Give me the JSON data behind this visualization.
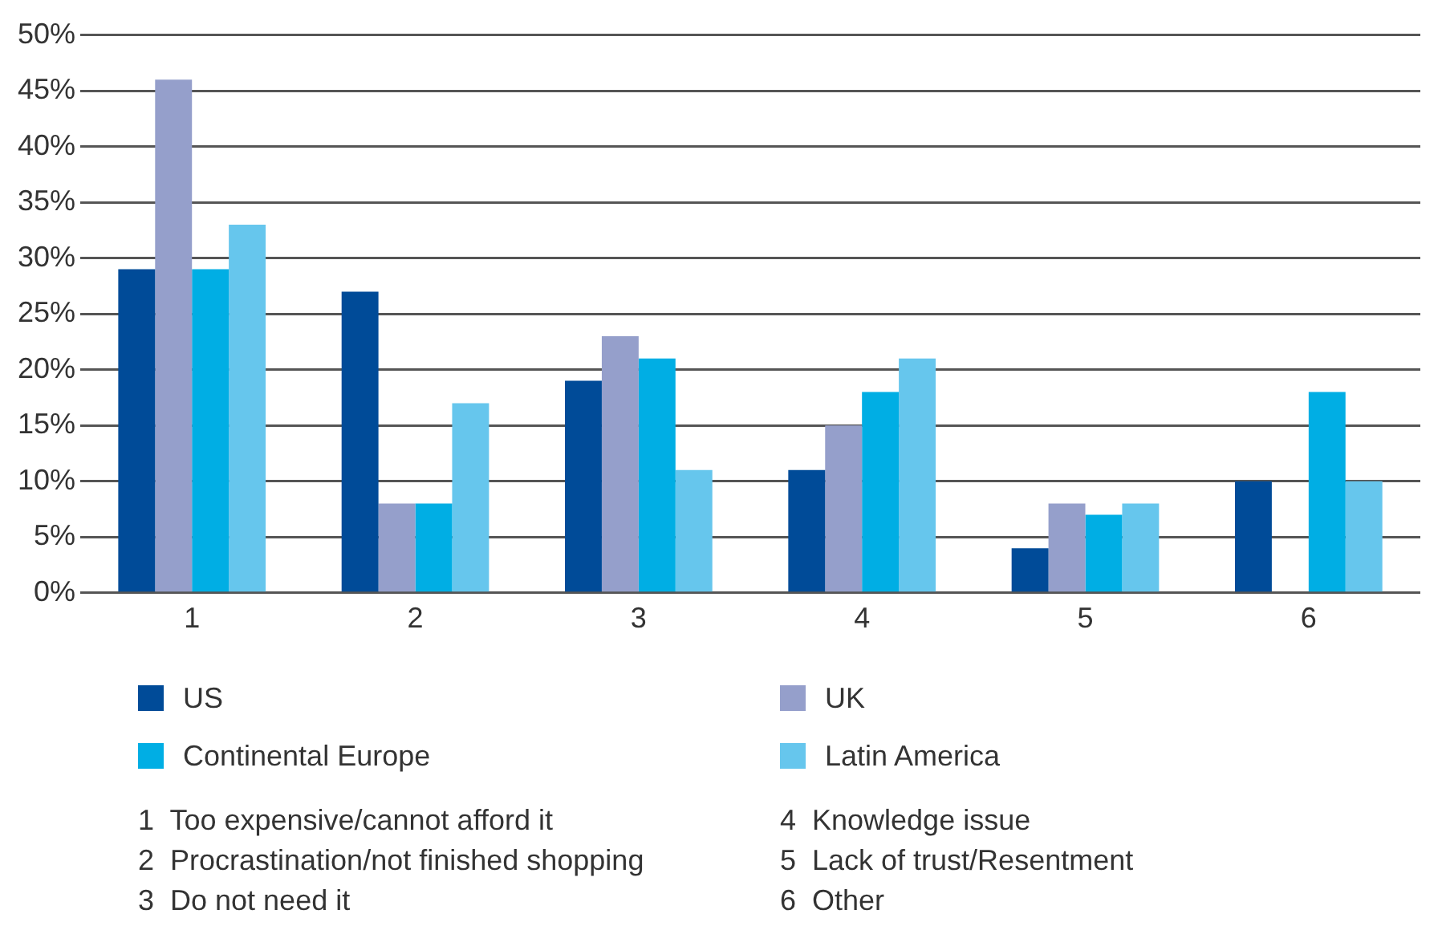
{
  "chart_data": {
    "type": "bar",
    "categories": [
      "1",
      "2",
      "3",
      "4",
      "5",
      "6"
    ],
    "series": [
      {
        "name": "US",
        "color": "#004b98",
        "values": [
          29,
          27,
          19,
          11,
          4,
          10
        ]
      },
      {
        "name": "UK",
        "color": "#959fcb",
        "values": [
          46,
          8,
          23,
          15,
          8,
          null
        ]
      },
      {
        "name": "Continental Europe",
        "color": "#00aee4",
        "values": [
          29,
          8,
          21,
          18,
          7,
          18
        ]
      },
      {
        "name": "Latin America",
        "color": "#66c6ed",
        "values": [
          33,
          17,
          11,
          21,
          8,
          10
        ]
      }
    ],
    "ylim": [
      0,
      50
    ],
    "yticks": [
      {
        "value": 0,
        "label": "0%"
      },
      {
        "value": 5,
        "label": "5%"
      },
      {
        "value": 10,
        "label": "10%"
      },
      {
        "value": 15,
        "label": "15%"
      },
      {
        "value": 20,
        "label": "20%"
      },
      {
        "value": 25,
        "label": "25%"
      },
      {
        "value": 30,
        "label": "30%"
      },
      {
        "value": 35,
        "label": "35%"
      },
      {
        "value": 40,
        "label": "40%"
      },
      {
        "value": 45,
        "label": "45%"
      },
      {
        "value": 50,
        "label": "50%"
      }
    ],
    "grid": "y",
    "legend": "bottom",
    "annotations": [
      "1  Too expensive/cannot afford it",
      "2  Procrastination/not finished shopping",
      "3  Do not need it",
      "4  Knowledge issue",
      "5  Lack of trust/Resentment",
      "6  Other"
    ]
  }
}
